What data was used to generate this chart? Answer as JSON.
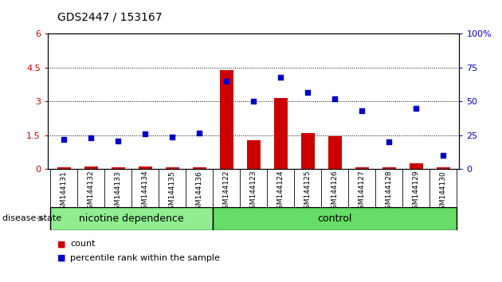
{
  "title": "GDS2447 / 153167",
  "samples": [
    "GSM144131",
    "GSM144132",
    "GSM144133",
    "GSM144134",
    "GSM144135",
    "GSM144136",
    "GSM144122",
    "GSM144123",
    "GSM144124",
    "GSM144125",
    "GSM144126",
    "GSM144127",
    "GSM144128",
    "GSM144129",
    "GSM144130"
  ],
  "count": [
    0.07,
    0.13,
    0.07,
    0.13,
    0.1,
    0.1,
    4.4,
    1.3,
    3.15,
    1.6,
    1.45,
    0.1,
    0.07,
    0.25,
    0.07
  ],
  "percentile": [
    22,
    23,
    21,
    26,
    24,
    27,
    65,
    50,
    68,
    57,
    52,
    43,
    20,
    45,
    10
  ],
  "nicotine_count": 6,
  "ylim_left": [
    0,
    6
  ],
  "ylim_right": [
    0,
    100
  ],
  "yticks_left": [
    0,
    1.5,
    3.0,
    4.5,
    6.0
  ],
  "yticks_right": [
    0,
    25,
    50,
    75,
    100
  ],
  "bar_color": "#CC0000",
  "scatter_color": "#0000CC",
  "bg_color": "#FFFFFF",
  "label_color_left": "#CC0000",
  "label_color_right": "#0000CC",
  "group_labels": [
    "nicotine dependence",
    "control"
  ],
  "group_color_nic": "#90EE90",
  "group_color_ctrl": "#66DD66",
  "disease_state_label": "disease state",
  "legend_count": "count",
  "legend_percentile": "percentile rank within the sample",
  "tick_bg_color": "#BBBBBB",
  "title_fontsize": 10,
  "tick_fontsize": 6.5,
  "axis_fontsize": 8,
  "group_fontsize": 9
}
